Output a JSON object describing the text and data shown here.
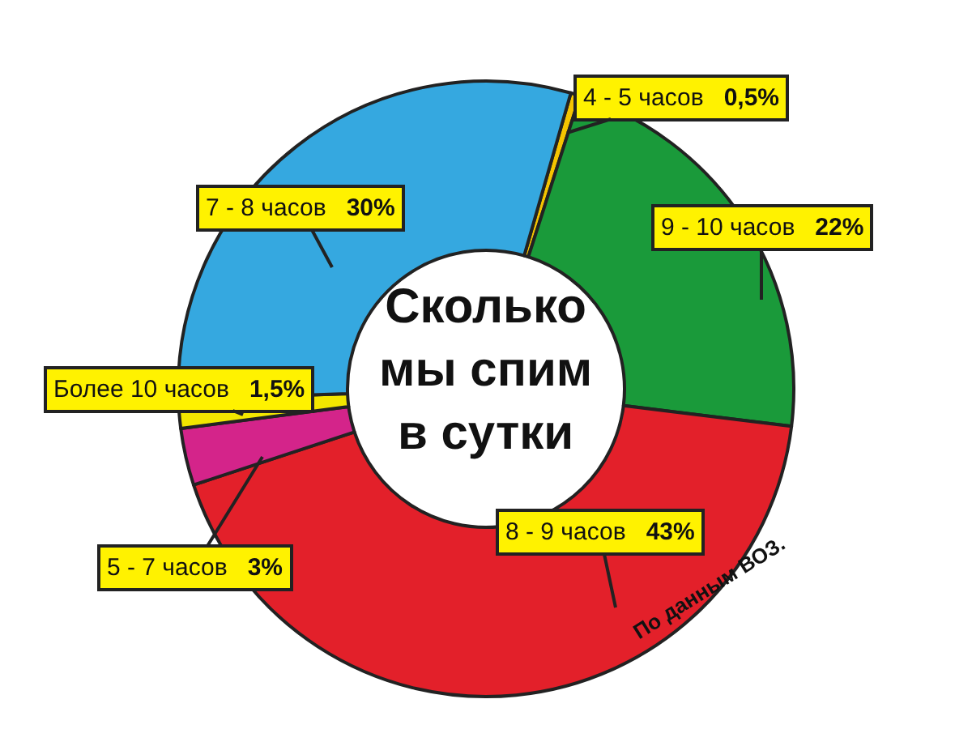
{
  "chart_data": {
    "type": "donut",
    "title": "Сколько\nмы спим\nв сутки",
    "categories": [
      "4 - 5 часов",
      "9 - 10 часов",
      "8 - 9 часов",
      "5 - 7 часов",
      "Более 10 часов",
      "7 - 8 часов"
    ],
    "values": [
      0.5,
      22,
      43,
      3,
      1.5,
      30
    ],
    "value_labels": [
      "0,5%",
      "22%",
      "43%",
      "3%",
      "1,5%",
      "30%"
    ],
    "colors": [
      "#f5c400",
      "#1a9a3a",
      "#e3202a",
      "#d4248a",
      "#f2e600",
      "#35a8e0"
    ],
    "annotations": [
      "По данным ВОЗ."
    ],
    "legend": false
  }
}
